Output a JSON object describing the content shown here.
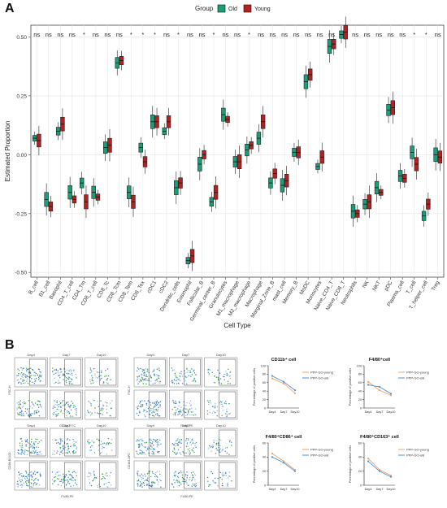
{
  "panel_labels": {
    "a": "A",
    "b": "B"
  },
  "colors": {
    "old": "#1b9e77",
    "young": "#b22222",
    "young_line": "#f4a261",
    "old_line": "#4a90d9",
    "grid": "#e4e4e4",
    "sig": "#222222"
  },
  "chart_data": [
    {
      "type": "boxplot",
      "panel": "A",
      "legend": {
        "title": "Group",
        "entries": [
          "Old",
          "Young"
        ],
        "position": "top"
      },
      "ylabel": "Estimated Proportion",
      "xlabel": "Cell Type",
      "ylim": [
        -0.52,
        0.55
      ],
      "yticks": [
        -0.5,
        -0.25,
        0.0,
        0.25,
        0.5
      ],
      "ytick_labels": [
        "-0.50",
        "-0.25",
        "0.00",
        "0.25",
        "0.50"
      ],
      "grid": true,
      "categories": [
        "B_cell",
        "B1_cell",
        "Basophil",
        "CD4_T_cell",
        "CD4_Tm",
        "CD8_T_cell",
        "CD8_Tc",
        "CD8_Tcm",
        "CD8_Tem",
        "CD8_Tex",
        "cDC1",
        "cDC2",
        "Dendritic_cells",
        "Eosinophil",
        "Follicular_B",
        "Germinal_center_B",
        "Granulocytes",
        "M1_macrophage",
        "M2_macrophage",
        "Macrophage",
        "Marginal_Zone_B",
        "mast_cell",
        "Memory_B",
        "MoDC",
        "Monocytes",
        "Naive_CD4_T",
        "Naive_CD8_T",
        "Neutrophils",
        "NK",
        "NKT",
        "pDC",
        "Plasma_cell",
        "T_cell",
        "T_helper_cell",
        "Treg"
      ],
      "significance": [
        "ns",
        "ns",
        "ns",
        "ns",
        "*",
        "ns",
        "ns",
        "ns",
        "*",
        "*",
        "*",
        "ns",
        "*",
        "ns",
        "ns",
        "*",
        "ns",
        "ns",
        "*",
        "ns",
        "ns",
        "ns",
        "ns",
        "ns",
        "ns",
        "ns",
        "ns",
        "ns",
        "ns",
        "ns",
        "ns",
        "ns",
        "*",
        "*",
        "ns"
      ],
      "series": [
        {
          "name": "Old",
          "medians": [
            0.07,
            -0.19,
            0.1,
            -0.16,
            -0.12,
            -0.16,
            0.03,
            0.39,
            -0.16,
            0.03,
            0.14,
            0.1,
            -0.14,
            -0.45,
            -0.04,
            -0.2,
            0.17,
            -0.03,
            0.02,
            0.07,
            -0.12,
            -0.13,
            0.01,
            0.31,
            -0.05,
            0.46,
            0.51,
            -0.24,
            -0.21,
            -0.14,
            0.19,
            -0.09,
            0.01,
            -0.26,
            0.0
          ]
        },
        {
          "name": "Young",
          "medians": [
            0.06,
            -0.22,
            0.13,
            -0.19,
            -0.2,
            -0.18,
            0.04,
            0.4,
            -0.2,
            -0.03,
            0.14,
            0.14,
            -0.12,
            -0.43,
            0.0,
            -0.16,
            0.15,
            -0.03,
            0.04,
            0.14,
            -0.08,
            -0.11,
            0.01,
            0.34,
            -0.01,
            0.47,
            0.52,
            -0.25,
            -0.2,
            -0.16,
            0.2,
            -0.1,
            -0.04,
            -0.21,
            -0.01
          ]
        }
      ]
    },
    {
      "type": "line",
      "title": "CD11b⁺ cell",
      "ylabel": "Percentage of positive cells",
      "categories": [
        "Day4",
        "Day7",
        "Day10"
      ],
      "ylim": [
        0,
        100
      ],
      "yticks": [
        0,
        20,
        40,
        60,
        80,
        100
      ],
      "legend": {
        "entries": [
          "PPP-GO-young",
          "PPP-GO-old"
        ],
        "position": "right"
      },
      "series": [
        {
          "name": "PPP-GO-young",
          "values": [
            70,
            58,
            35
          ]
        },
        {
          "name": "PPP-GO-old",
          "values": [
            76,
            62,
            42
          ]
        }
      ]
    },
    {
      "type": "line",
      "title": "F4/80⁺cell",
      "ylabel": "Percentage of positive cells",
      "categories": [
        "Day4",
        "Day7",
        "Day10"
      ],
      "ylim": [
        0,
        100
      ],
      "yticks": [
        0,
        20,
        40,
        60,
        80,
        100
      ],
      "legend": {
        "entries": [
          "PPP-GO-young",
          "PPP-GO-old"
        ],
        "position": "right"
      },
      "series": [
        {
          "name": "PPP-GO-young",
          "values": [
            62,
            42,
            30
          ]
        },
        {
          "name": "PPP-GO-old",
          "values": [
            55,
            50,
            34
          ]
        }
      ]
    },
    {
      "type": "line",
      "title": "F4/80⁺CD86⁺ cell",
      "ylabel": "Percentage of positive cells",
      "categories": [
        "Day4",
        "Day7",
        "Day10"
      ],
      "ylim": [
        0,
        60
      ],
      "yticks": [
        0,
        20,
        40,
        60
      ],
      "legend": {
        "entries": [
          "PPP-GO-young",
          "PPP-GO-old"
        ],
        "position": "right"
      },
      "series": [
        {
          "name": "PPP-GO-young",
          "values": [
            45,
            34,
            22
          ]
        },
        {
          "name": "PPP-GO-old",
          "values": [
            40,
            32,
            20
          ]
        }
      ]
    },
    {
      "type": "line",
      "title": "F4/80⁺CD163⁺ cell",
      "ylabel": "Percentage of positive cells",
      "categories": [
        "Day4",
        "Day7",
        "Day10"
      ],
      "ylim": [
        0,
        60
      ],
      "yticks": [
        0,
        20,
        40,
        60
      ],
      "legend": {
        "entries": [
          "PPP-GO-young",
          "PPP-GO-old"
        ],
        "position": "right"
      },
      "series": [
        {
          "name": "PPP-GO-young",
          "values": [
            38,
            22,
            14
          ]
        },
        {
          "name": "PPP-GO-old",
          "values": [
            34,
            20,
            12
          ]
        }
      ]
    }
  ],
  "flow_panels": {
    "day_labels": [
      "Day4",
      "Day7",
      "Day10"
    ],
    "blocks": [
      {
        "xaxis": "CD11b-FITC",
        "yaxis": "FSC-H"
      },
      {
        "xaxis": "F4/80-PE",
        "yaxis": "FSC-H"
      },
      {
        "xaxis": "F4/80-PE",
        "yaxis": "CD86-BV421"
      },
      {
        "xaxis": "F4/80-PE",
        "yaxis": "CD163-APC"
      }
    ]
  }
}
